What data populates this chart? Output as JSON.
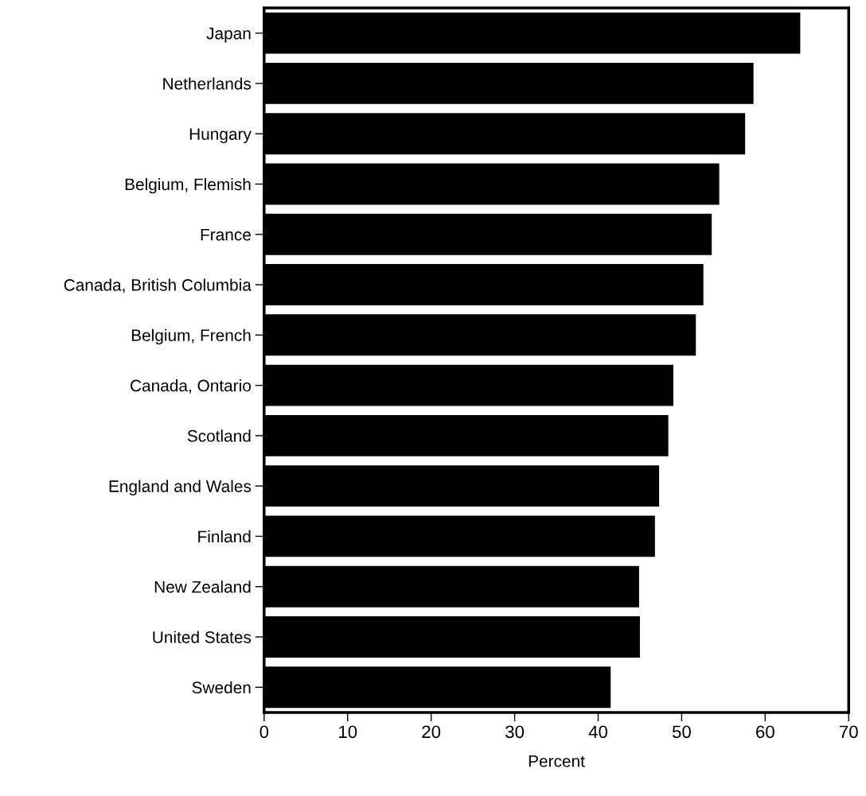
{
  "chart_data": {
    "type": "bar",
    "orientation": "horizontal",
    "xlabel": "Percent",
    "categories": [
      "Japan",
      "Netherlands",
      "Hungary",
      "Belgium, Flemish",
      "France",
      "Canada, British Columbia",
      "Belgium, French",
      "Canada, Ontario",
      "Scotland",
      "England and Wales",
      "Finland",
      "New Zealand",
      "United States",
      "Sweden"
    ],
    "values": [
      64.2,
      58.6,
      57.6,
      54.5,
      53.6,
      52.6,
      51.7,
      49.0,
      48.4,
      47.3,
      46.8,
      44.9,
      45.0,
      41.5
    ],
    "color": "#000000",
    "xlim": [
      0,
      70
    ],
    "xticks": [
      0,
      10,
      20,
      30,
      40,
      50,
      60,
      70
    ],
    "grid": false
  }
}
